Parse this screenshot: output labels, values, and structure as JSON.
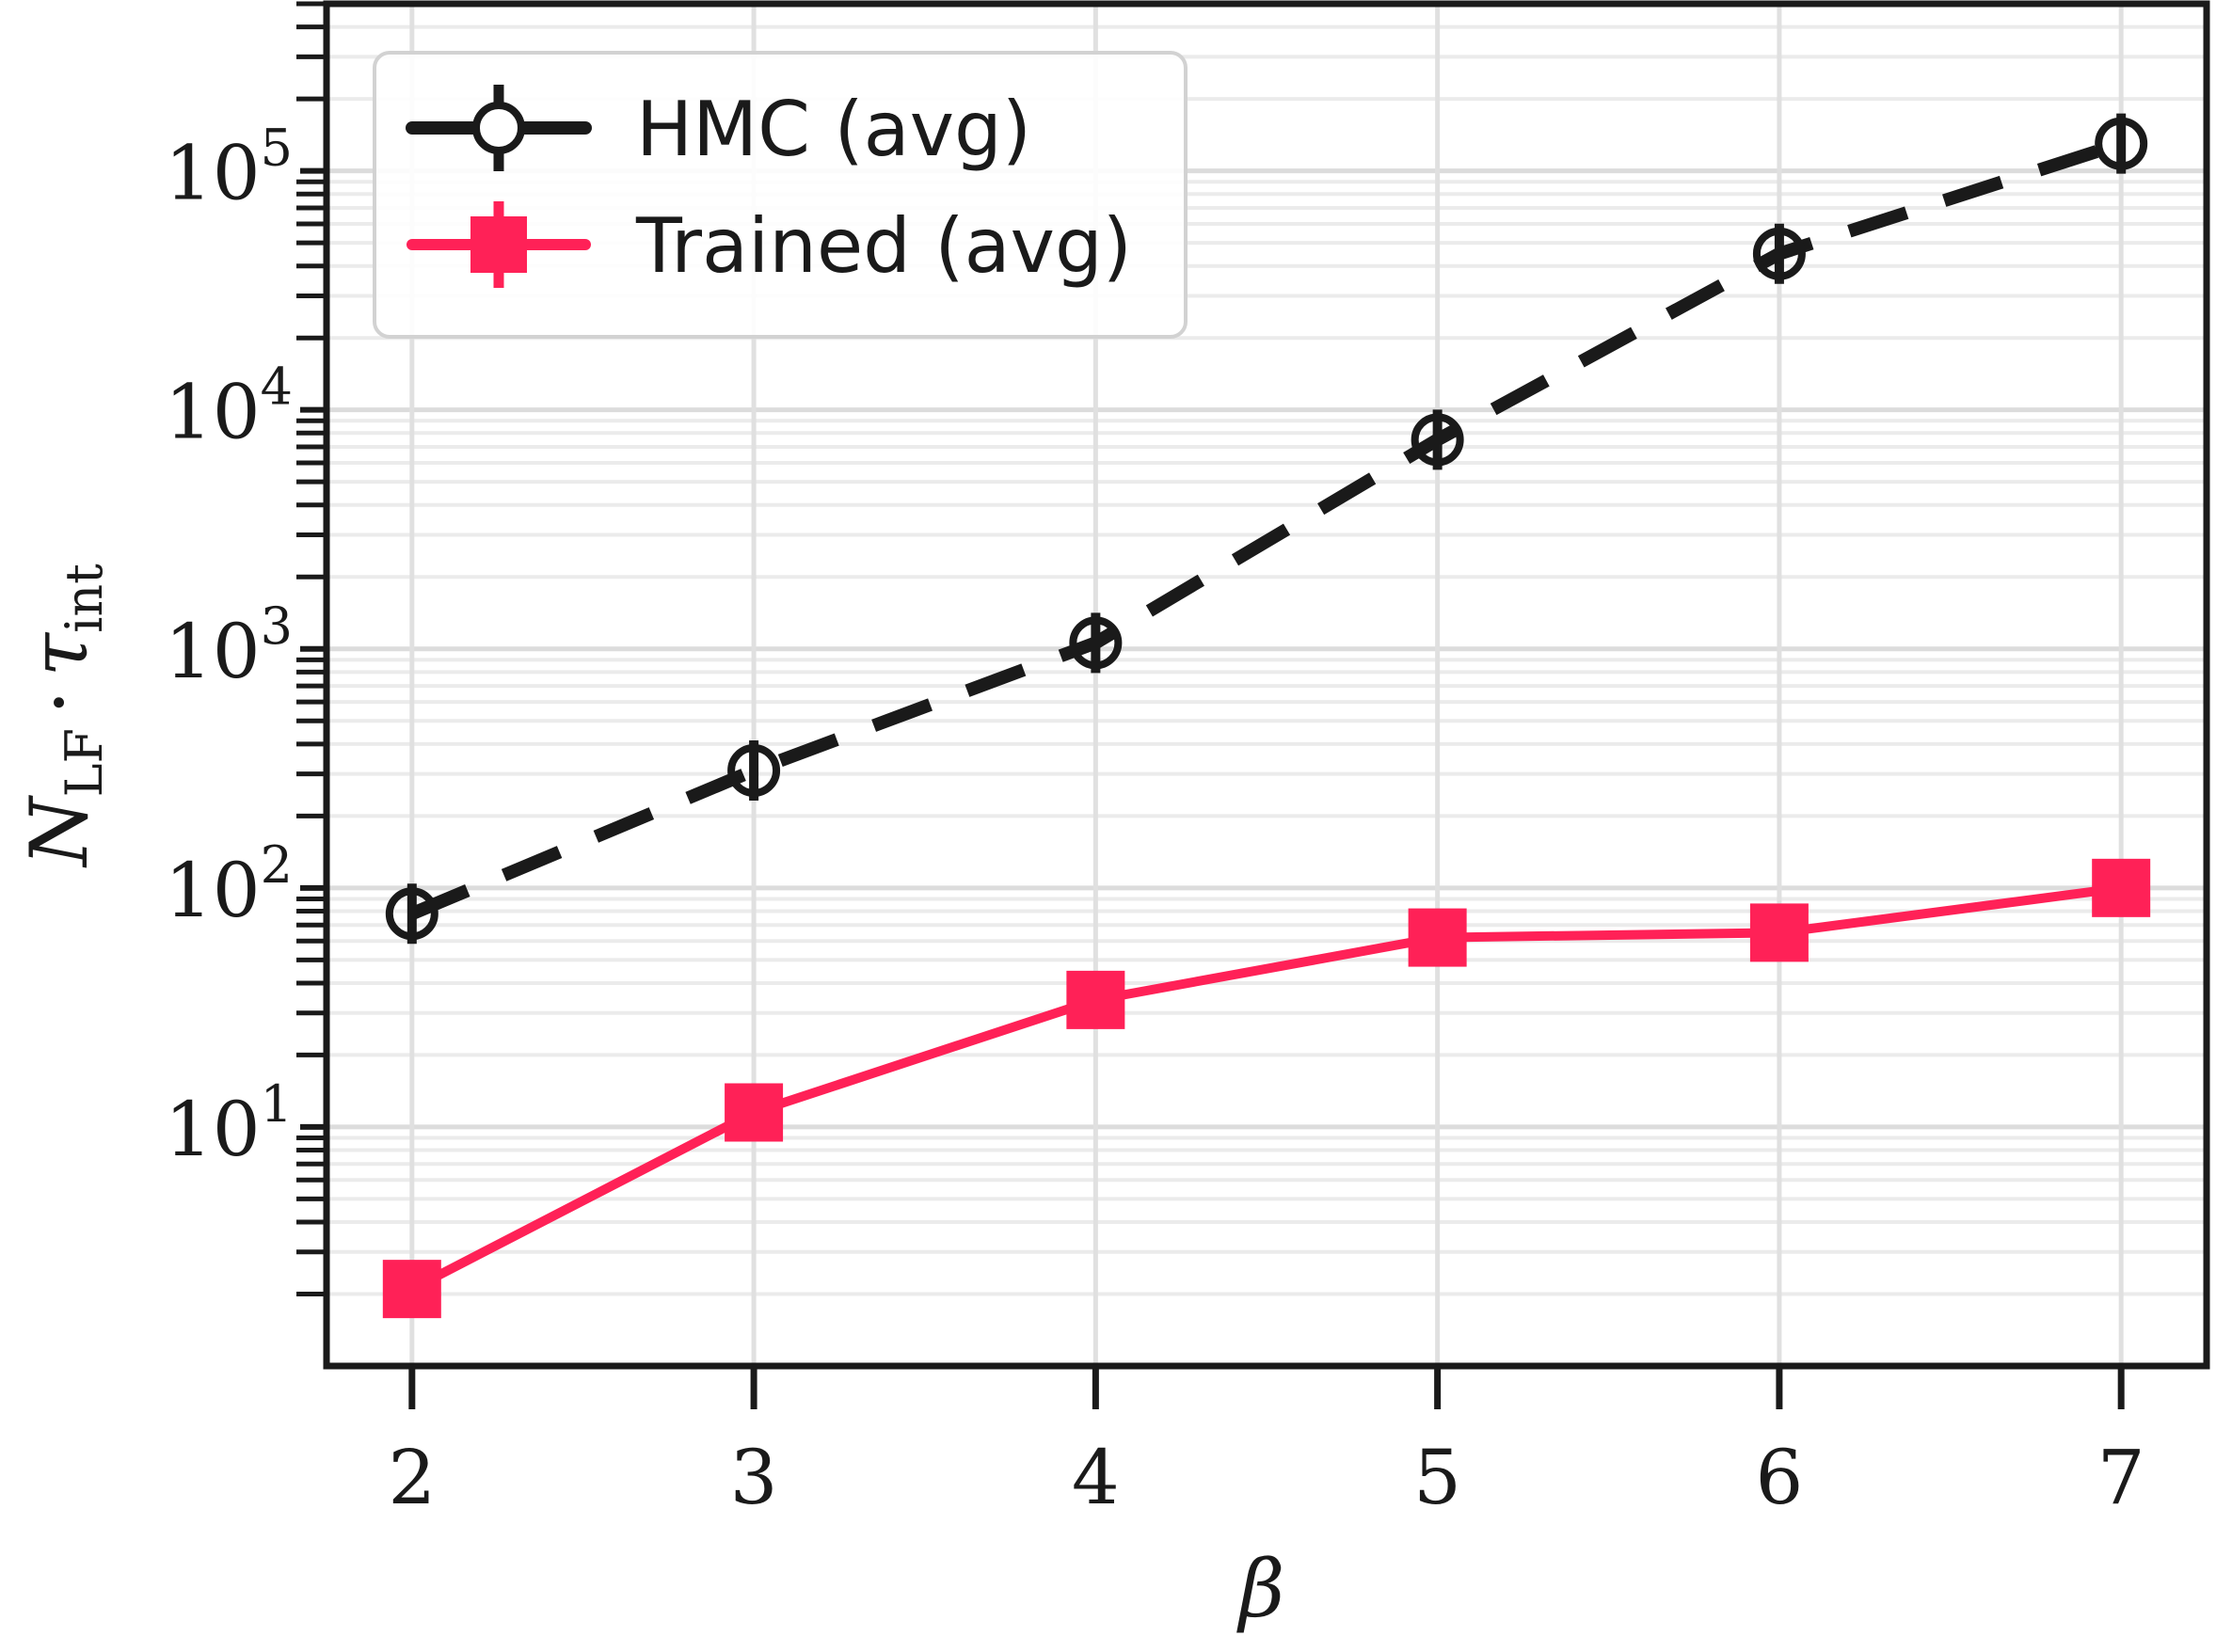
{
  "chart_data": {
    "type": "line",
    "xlabel": "β",
    "ylabel": "N_LF · τ_int",
    "ylabel_main": "N",
    "ylabel_sub1": "LF",
    "ylabel_dot": "·",
    "ylabel_tau": "τ",
    "ylabel_sub2": "int",
    "yscale": "log",
    "xlim": [
      1.75,
      7.25
    ],
    "ylim": [
      1.0,
      500000
    ],
    "grid": true,
    "legend_position": "top-left",
    "x_ticks": [
      2,
      3,
      4,
      5,
      6,
      7
    ],
    "x_tick_labels": [
      "2",
      "3",
      "4",
      "5",
      "6",
      "7"
    ],
    "y_ticks": [
      10,
      100,
      1000,
      10000,
      100000
    ],
    "y_tick_labels": [
      {
        "base": "10",
        "exp": "1"
      },
      {
        "base": "10",
        "exp": "2"
      },
      {
        "base": "10",
        "exp": "3"
      },
      {
        "base": "10",
        "exp": "4"
      },
      {
        "base": "10",
        "exp": "5"
      }
    ],
    "series": [
      {
        "name": "HMC (avg)",
        "color": "#1a1a1a",
        "dashed": true,
        "marker": "open-circle",
        "x": [
          2,
          3,
          4,
          5,
          6,
          7
        ],
        "y": [
          78,
          310,
          1060,
          7500,
          45000,
          130000
        ]
      },
      {
        "name": "Trained (avg)",
        "color": "#ff2157",
        "dashed": false,
        "marker": "square",
        "x": [
          2,
          3,
          4,
          5,
          6,
          7
        ],
        "y": [
          2.1,
          11.5,
          34,
          62,
          65,
          100
        ]
      }
    ]
  }
}
